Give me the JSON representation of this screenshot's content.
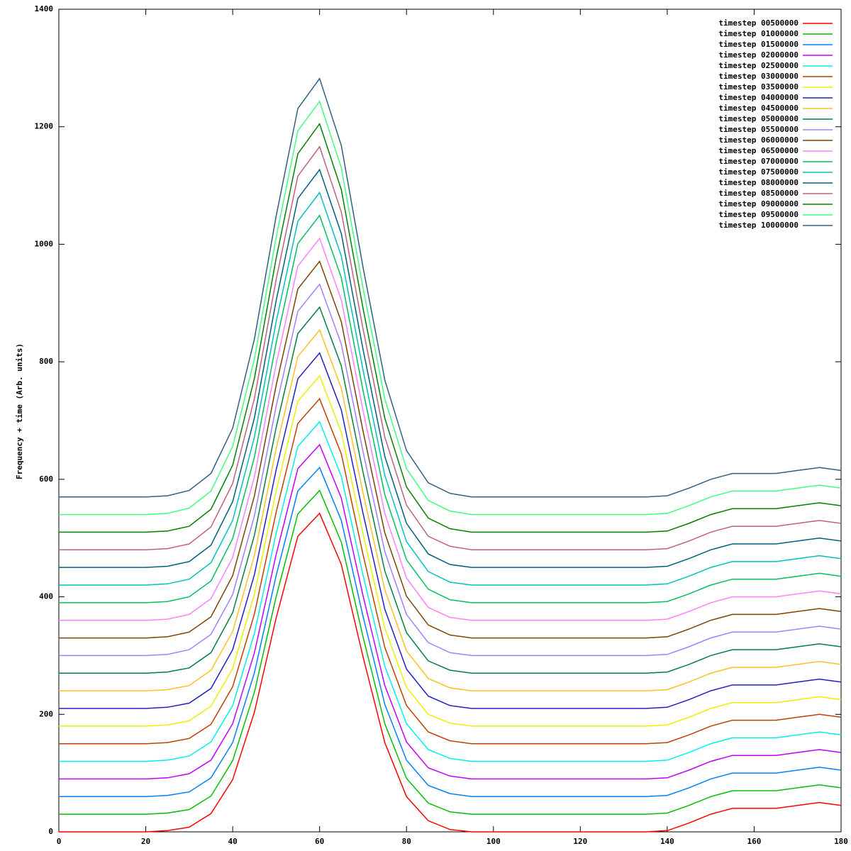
{
  "chart_data": {
    "type": "line",
    "ylabel": "Frequency + time (Arb. units)",
    "x": [
      0,
      5,
      10,
      15,
      20,
      25,
      30,
      35,
      40,
      45,
      50,
      55,
      60,
      65,
      70,
      75,
      80,
      85,
      90,
      95,
      100,
      105,
      110,
      115,
      120,
      125,
      130,
      135,
      140,
      145,
      150,
      155,
      160,
      165,
      170,
      175,
      180
    ],
    "xlim": [
      0,
      180
    ],
    "xticks": [
      0,
      20,
      40,
      60,
      80,
      100,
      120,
      140,
      160,
      180
    ],
    "ylim": [
      0,
      1400
    ],
    "yticks": [
      0,
      200,
      400,
      600,
      800,
      1000,
      1200,
      1400
    ],
    "legend": "upper right",
    "series": [
      {
        "name": "timestep 00500000",
        "color": "#ff0000",
        "values": [
          0,
          0,
          0,
          0,
          0,
          2,
          8,
          31,
          89,
          204,
          364,
          503,
          542,
          455,
          298,
          152,
          60,
          19,
          4,
          0,
          0,
          0,
          0,
          0,
          0,
          0,
          0,
          0,
          2,
          15,
          30,
          40,
          40,
          40,
          45,
          50,
          45
        ]
      },
      {
        "name": "timestep 01000000",
        "color": "#00c000",
        "values": [
          30,
          30,
          30,
          30,
          30,
          32,
          38,
          61,
          121,
          238,
          400,
          541,
          581,
          493,
          332,
          184,
          91,
          49,
          34,
          30,
          30,
          30,
          30,
          30,
          30,
          30,
          30,
          30,
          32,
          45,
          60,
          70,
          70,
          70,
          75,
          80,
          75
        ]
      },
      {
        "name": "timestep 01500000",
        "color": "#0080ff",
        "values": [
          60,
          60,
          60,
          60,
          60,
          62,
          68,
          92,
          152,
          271,
          436,
          580,
          620,
          530,
          367,
          217,
          122,
          79,
          65,
          60,
          60,
          60,
          60,
          60,
          60,
          60,
          60,
          60,
          62,
          75,
          90,
          100,
          100,
          100,
          105,
          110,
          105
        ]
      },
      {
        "name": "timestep 02000000",
        "color": "#c000ff",
        "values": [
          90,
          90,
          90,
          90,
          90,
          92,
          99,
          122,
          184,
          305,
          472,
          618,
          659,
          568,
          402,
          249,
          153,
          109,
          95,
          90,
          90,
          90,
          90,
          90,
          90,
          90,
          90,
          90,
          92,
          105,
          120,
          130,
          130,
          130,
          135,
          140,
          135
        ]
      },
      {
        "name": "timestep 02500000",
        "color": "#00eeee",
        "values": [
          120,
          120,
          120,
          120,
          120,
          122,
          129,
          153,
          215,
          338,
          508,
          656,
          698,
          605,
          437,
          282,
          184,
          140,
          125,
          120,
          120,
          120,
          120,
          120,
          120,
          120,
          120,
          120,
          122,
          135,
          150,
          160,
          160,
          160,
          165,
          170,
          165
        ]
      },
      {
        "name": "timestep 03000000",
        "color": "#c04000",
        "values": [
          150,
          150,
          150,
          150,
          150,
          152,
          159,
          183,
          247,
          371,
          544,
          695,
          737,
          643,
          472,
          314,
          215,
          170,
          155,
          150,
          150,
          150,
          150,
          150,
          150,
          150,
          150,
          150,
          152,
          165,
          180,
          190,
          190,
          190,
          195,
          200,
          195
        ]
      },
      {
        "name": "timestep 03500000",
        "color": "#eeee00",
        "values": [
          180,
          180,
          180,
          180,
          180,
          182,
          189,
          214,
          278,
          405,
          580,
          733,
          776,
          680,
          507,
          347,
          246,
          200,
          185,
          180,
          180,
          180,
          180,
          180,
          180,
          180,
          180,
          180,
          182,
          195,
          210,
          220,
          220,
          220,
          225,
          230,
          225
        ]
      },
      {
        "name": "timestep 04000000",
        "color": "#2020c0",
        "values": [
          210,
          210,
          210,
          210,
          210,
          212,
          219,
          244,
          310,
          438,
          616,
          771,
          815,
          718,
          542,
          379,
          277,
          231,
          215,
          210,
          210,
          210,
          210,
          210,
          210,
          210,
          210,
          210,
          212,
          225,
          240,
          250,
          250,
          250,
          255,
          260,
          255
        ]
      },
      {
        "name": "timestep 04500000",
        "color": "#ffc020",
        "values": [
          240,
          240,
          240,
          240,
          240,
          242,
          249,
          275,
          341,
          471,
          652,
          809,
          854,
          755,
          577,
          412,
          308,
          261,
          245,
          240,
          240,
          240,
          240,
          240,
          240,
          240,
          240,
          240,
          242,
          255,
          270,
          280,
          280,
          280,
          285,
          290,
          285
        ]
      },
      {
        "name": "timestep 05000000",
        "color": "#008040",
        "values": [
          270,
          270,
          270,
          270,
          270,
          272,
          279,
          305,
          373,
          505,
          688,
          848,
          893,
          793,
          612,
          444,
          339,
          291,
          275,
          270,
          270,
          270,
          270,
          270,
          270,
          270,
          270,
          270,
          272,
          285,
          300,
          310,
          310,
          310,
          315,
          320,
          315
        ]
      },
      {
        "name": "timestep 05500000",
        "color": "#a080ff",
        "values": [
          300,
          300,
          300,
          300,
          300,
          302,
          310,
          336,
          404,
          538,
          724,
          886,
          932,
          830,
          647,
          477,
          370,
          322,
          305,
          300,
          300,
          300,
          300,
          300,
          300,
          300,
          300,
          300,
          302,
          315,
          330,
          340,
          340,
          340,
          345,
          350,
          345
        ]
      },
      {
        "name": "timestep 06000000",
        "color": "#804000",
        "values": [
          330,
          330,
          330,
          330,
          330,
          332,
          340,
          366,
          436,
          572,
          760,
          924,
          971,
          868,
          682,
          509,
          401,
          352,
          335,
          330,
          330,
          330,
          330,
          330,
          330,
          330,
          330,
          330,
          332,
          345,
          360,
          370,
          370,
          370,
          375,
          380,
          375
        ]
      },
      {
        "name": "timestep 06500000",
        "color": "#ff80ff",
        "values": [
          360,
          360,
          360,
          360,
          360,
          362,
          370,
          397,
          467,
          605,
          796,
          963,
          1010,
          905,
          717,
          542,
          432,
          382,
          365,
          360,
          360,
          360,
          360,
          360,
          360,
          360,
          360,
          360,
          362,
          375,
          390,
          400,
          400,
          400,
          405,
          410,
          405
        ]
      },
      {
        "name": "timestep 07000000",
        "color": "#00c060",
        "values": [
          390,
          390,
          390,
          390,
          390,
          392,
          400,
          427,
          499,
          638,
          832,
          1001,
          1049,
          943,
          751,
          574,
          463,
          413,
          395,
          390,
          390,
          390,
          390,
          390,
          390,
          390,
          390,
          390,
          392,
          405,
          420,
          430,
          430,
          430,
          435,
          440,
          435
        ]
      },
      {
        "name": "timestep 07500000",
        "color": "#00c0c0",
        "values": [
          420,
          420,
          420,
          420,
          420,
          422,
          430,
          458,
          530,
          672,
          868,
          1039,
          1088,
          980,
          786,
          607,
          494,
          443,
          425,
          420,
          420,
          420,
          420,
          420,
          420,
          420,
          420,
          420,
          422,
          435,
          450,
          460,
          460,
          460,
          465,
          470,
          465
        ]
      },
      {
        "name": "timestep 08000000",
        "color": "#006080",
        "values": [
          450,
          450,
          450,
          450,
          450,
          452,
          460,
          488,
          562,
          705,
          904,
          1078,
          1127,
          1018,
          821,
          639,
          525,
          473,
          455,
          450,
          450,
          450,
          450,
          450,
          450,
          450,
          450,
          450,
          452,
          465,
          480,
          490,
          490,
          490,
          495,
          500,
          495
        ]
      },
      {
        "name": "timestep 08500000",
        "color": "#c06080",
        "values": [
          480,
          480,
          480,
          480,
          480,
          482,
          490,
          519,
          593,
          738,
          940,
          1116,
          1166,
          1055,
          856,
          672,
          556,
          503,
          486,
          480,
          480,
          480,
          480,
          480,
          480,
          480,
          480,
          480,
          482,
          495,
          510,
          520,
          520,
          520,
          525,
          530,
          525
        ]
      },
      {
        "name": "timestep 09000000",
        "color": "#008000",
        "values": [
          510,
          510,
          510,
          510,
          510,
          512,
          520,
          549,
          624,
          772,
          976,
          1154,
          1205,
          1093,
          891,
          704,
          587,
          534,
          516,
          510,
          510,
          510,
          510,
          510,
          510,
          510,
          510,
          510,
          512,
          525,
          540,
          550,
          550,
          550,
          555,
          560,
          555
        ]
      },
      {
        "name": "timestep 09500000",
        "color": "#40ff80",
        "values": [
          540,
          540,
          540,
          540,
          540,
          542,
          551,
          580,
          656,
          805,
          1012,
          1193,
          1243,
          1130,
          926,
          737,
          618,
          564,
          546,
          540,
          540,
          540,
          540,
          540,
          540,
          540,
          540,
          540,
          542,
          555,
          570,
          580,
          580,
          580,
          585,
          590,
          585
        ]
      },
      {
        "name": "timestep 10000000",
        "color": "#306080",
        "values": [
          570,
          570,
          570,
          570,
          570,
          572,
          581,
          610,
          687,
          839,
          1048,
          1231,
          1282,
          1168,
          961,
          769,
          649,
          594,
          576,
          570,
          570,
          570,
          570,
          570,
          570,
          570,
          570,
          570,
          572,
          585,
          600,
          610,
          610,
          610,
          615,
          620,
          615
        ]
      }
    ]
  }
}
